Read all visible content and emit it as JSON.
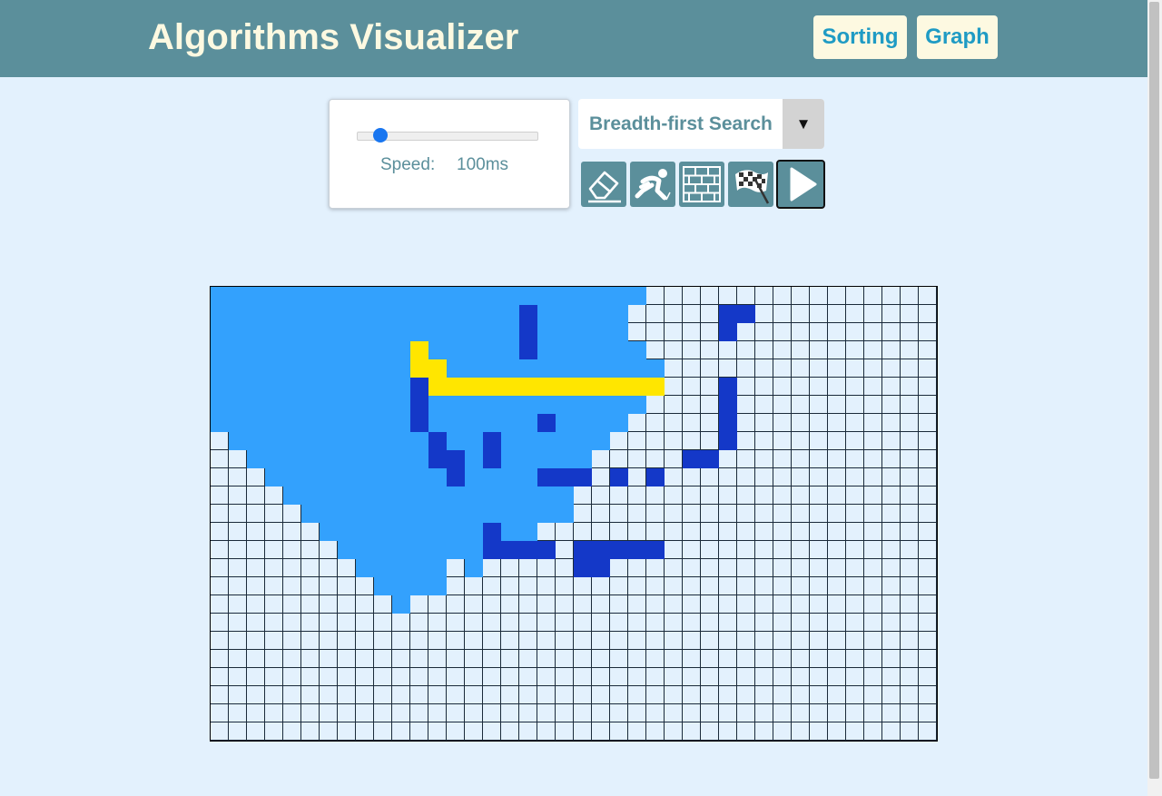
{
  "header": {
    "title": "Algorithms Visualizer",
    "nav": [
      {
        "label": "Sorting"
      },
      {
        "label": "Graph"
      }
    ]
  },
  "controls": {
    "speed_label": "Speed:",
    "speed_value": "100ms",
    "slider_fraction": 0.13,
    "algorithm_selected": "Breadth-first Search",
    "dropdown_arrow": "▼",
    "tools": [
      {
        "name": "clear-board-button",
        "icon": "eraser-icon"
      },
      {
        "name": "place-start-button",
        "icon": "runner-icon"
      },
      {
        "name": "place-walls-button",
        "icon": "brick-wall-icon"
      },
      {
        "name": "place-finish-button",
        "icon": "checkered-flag-icon"
      },
      {
        "name": "run-button",
        "icon": "play-icon"
      }
    ]
  },
  "colors": {
    "header": "#5b8f9b",
    "background": "#e3f1fd",
    "visited": "#33a1fd",
    "wall": "#1438c8",
    "path": "#ffe600",
    "unvisited": "#e3f1fd"
  },
  "grid": {
    "cols": 40,
    "rows": 25,
    "legend": {
      "V": "visited",
      "W": "wall",
      "P": "path",
      ".": "unvisited"
    },
    "cells": [
      "VVVVVVVVVVVVVVVVVVVVVVVV................",
      "VVVVVVVVVVVVVVVVVWVVVVV.....WW..........",
      "VVVVVVVVVVVVVVVVVWVVVVV.....W...........",
      "VVVVVVVVVVVPVVVVVWVVVVVV................",
      "VVVVVVVVVVVPPVVVVVVVVVVVV...............",
      "VVVVVVVVVVVWPPPPPPPPPPPPP...W...........",
      "VVVVVVVVVVVWVVVVVVVVVVVV....W...........",
      "VVVVVVVVVVVWVVVVVVWVVVV.....W...........",
      ".VVVVVVVVVVVWVVWVVVVVV......W...........",
      "..VVVVVVVVVVWWVWVVVVV.....WW............",
      "...VVVVVVVVVVWVVVVWWW.W.W...............",
      "....VVVVVVVVVVVVVVVV....................",
      ".....VVVVVVVVVVVVVVV....................",
      "......VVVVVVVVVWVV......................",
      ".......VVVVVVVVWWWW.WWWWW...............",
      "........VVVVV.V.....WW..................",
      ".........VVVV...........................",
      "..........V.............................",
      "........................................",
      "........................................",
      "........................................",
      "........................................",
      "........................................",
      "........................................",
      "........................................"
    ]
  }
}
